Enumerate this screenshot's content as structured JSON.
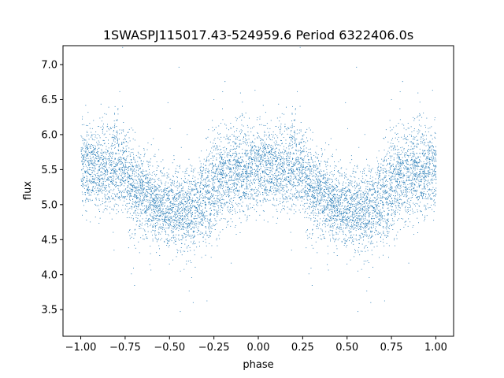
{
  "chart_data": {
    "type": "scatter",
    "title": "1SWASPJ115017.43-524959.6 Period 6322406.0s",
    "xlabel": "phase",
    "ylabel": "flux",
    "xlim": [
      -1.1,
      1.1
    ],
    "ylim": [
      3.12,
      7.27
    ],
    "xticks": [
      -1.0,
      -0.75,
      -0.5,
      -0.25,
      0.0,
      0.25,
      0.5,
      0.75,
      1.0
    ],
    "xtick_labels": [
      "−1.00",
      "−0.75",
      "−0.50",
      "−0.25",
      "0.00",
      "0.25",
      "0.50",
      "0.75",
      "1.00"
    ],
    "yticks": [
      3.5,
      4.0,
      4.5,
      5.0,
      5.5,
      6.0,
      6.5,
      7.0
    ],
    "ytick_labels": [
      "3.5",
      "4.0",
      "4.5",
      "5.0",
      "5.5",
      "6.0",
      "6.5",
      "7.0"
    ],
    "grid": false,
    "marker_color": "#1f77b4",
    "series": [
      {
        "phase_range": [
          -1.0,
          1.0
        ],
        "profile": {
          "phase": [
            0.0,
            0.1,
            0.2,
            0.3,
            0.4,
            0.5,
            0.6,
            0.7,
            0.8,
            0.9,
            1.0
          ],
          "median_flux": [
            5.55,
            5.5,
            5.6,
            5.25,
            5.05,
            4.95,
            4.9,
            5.1,
            5.45,
            5.5,
            5.55
          ],
          "spread": [
            0.3,
            0.28,
            0.35,
            0.3,
            0.28,
            0.28,
            0.3,
            0.35,
            0.35,
            0.32,
            0.3
          ]
        },
        "point_count": 9000
      }
    ]
  }
}
